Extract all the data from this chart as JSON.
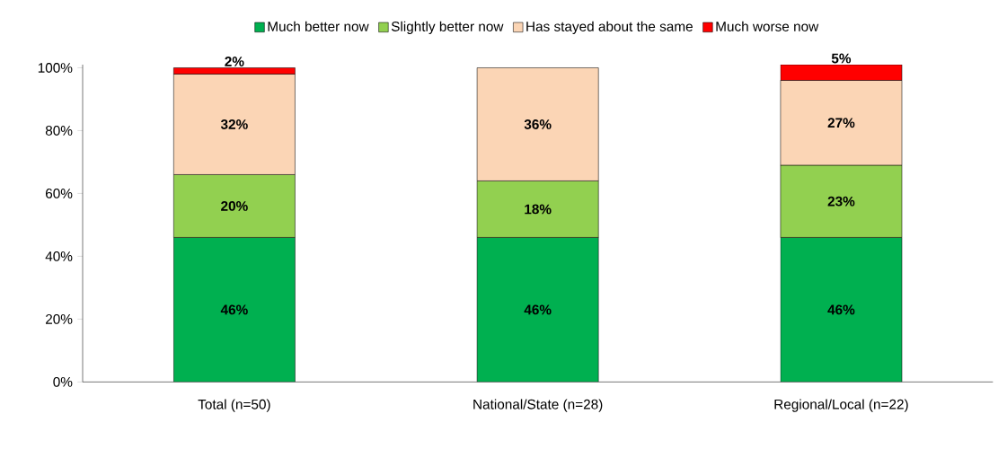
{
  "chart_data": {
    "type": "bar",
    "stacked": true,
    "categories": [
      "Total (n=50)",
      "National/State (n=28)",
      "Regional/Local (n=22)"
    ],
    "series": [
      {
        "name": "Much better now",
        "color": "#00b050",
        "values": [
          46,
          46,
          46
        ],
        "value_labels": [
          "46%",
          "46%",
          "46%"
        ]
      },
      {
        "name": "Slightly better now",
        "color": "#92d050",
        "values": [
          20,
          18,
          23
        ],
        "value_labels": [
          "20%",
          "18%",
          "23%"
        ]
      },
      {
        "name": "Has stayed about the same",
        "color": "#fbd5b5",
        "values": [
          32,
          36,
          27
        ],
        "value_labels": [
          "32%",
          "36%",
          "27%"
        ]
      },
      {
        "name": "Much worse now",
        "color": "#ff0000",
        "values": [
          2,
          null,
          5
        ],
        "value_labels": [
          "2%",
          null,
          "5%"
        ]
      }
    ],
    "ylim": [
      0,
      101
    ],
    "yticks": [
      {
        "value": 0,
        "label": "0%"
      },
      {
        "value": 20,
        "label": "20%"
      },
      {
        "value": 40,
        "label": "40%"
      },
      {
        "value": 60,
        "label": "60%"
      },
      {
        "value": 80,
        "label": "80%"
      },
      {
        "value": 100,
        "label": "100%"
      }
    ],
    "legend": "top",
    "grid": false
  }
}
